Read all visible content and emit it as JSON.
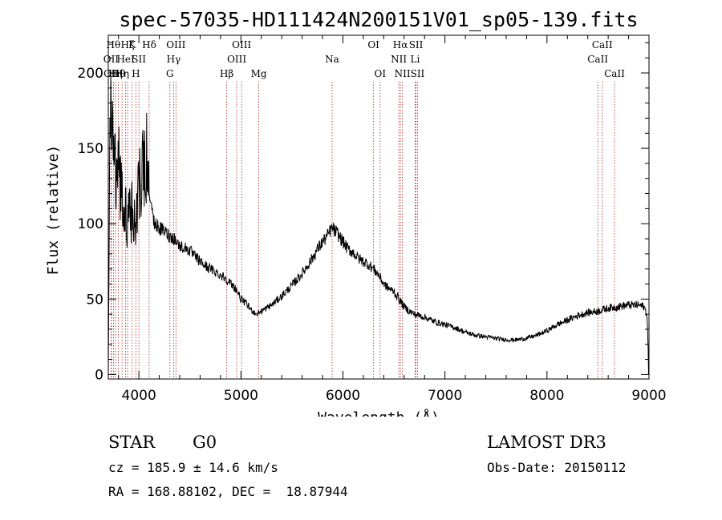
{
  "chart_data": {
    "type": "line",
    "title": "spec-57035-HD111424N200151V01_sp05-139.fits",
    "xlabel": "Wavelength (Å)",
    "ylabel": "Flux (relative)",
    "xlim": [
      3700,
      9000
    ],
    "ylim": [
      -3,
      225
    ],
    "x_ticks": [
      4000,
      5000,
      6000,
      7000,
      8000,
      9000
    ],
    "y_ticks": [
      0,
      50,
      100,
      150,
      200
    ],
    "grid": false,
    "series": [
      {
        "name": "flux",
        "color": "#000000",
        "x": [
          3700,
          3720,
          3740,
          3760,
          3780,
          3800,
          3830,
          3860,
          3900,
          3940,
          3980,
          4020,
          4060,
          4080,
          4100,
          4150,
          4200,
          4250,
          4300,
          4350,
          4400,
          4450,
          4500,
          4550,
          4600,
          4650,
          4700,
          4750,
          4800,
          4850,
          4900,
          4950,
          5000,
          5050,
          5100,
          5150,
          5200,
          5300,
          5400,
          5500,
          5600,
          5700,
          5750,
          5800,
          5850,
          5880,
          5900,
          5920,
          5950,
          6000,
          6050,
          6100,
          6150,
          6200,
          6250,
          6300,
          6350,
          6400,
          6450,
          6500,
          6550,
          6600,
          6650,
          6700,
          6750,
          6800,
          6900,
          7000,
          7100,
          7200,
          7300,
          7400,
          7500,
          7600,
          7700,
          7800,
          7900,
          8000,
          8100,
          8200,
          8300,
          8400,
          8500,
          8600,
          8700,
          8800,
          8900,
          8950,
          8980,
          9000
        ],
        "y": [
          0,
          190,
          150,
          140,
          120,
          145,
          115,
          110,
          100,
          108,
          110,
          130,
          140,
          145,
          120,
          100,
          97,
          95,
          92,
          90,
          85,
          84,
          82,
          78,
          75,
          72,
          70,
          68,
          66,
          64,
          60,
          57,
          50,
          47,
          43,
          40,
          42,
          46,
          52,
          59,
          67,
          77,
          83,
          88,
          92,
          96,
          97,
          95,
          93,
          88,
          83,
          81,
          77,
          75,
          73,
          70,
          66,
          60,
          57,
          55,
          50,
          45,
          42,
          40,
          39,
          38,
          35,
          33,
          31,
          28,
          26,
          25,
          24,
          23,
          23,
          24,
          26,
          29,
          33,
          36,
          39,
          41,
          42,
          44,
          45,
          46,
          46,
          45,
          40,
          0
        ]
      }
    ],
    "lines": [
      {
        "wl": 3727,
        "label": "OII",
        "row": 1
      },
      {
        "wl": 3730,
        "label": "OII",
        "row": 2
      },
      {
        "wl": 3750,
        "label": "Hθ",
        "row": 0
      },
      {
        "wl": 3770,
        "label": "Hη",
        "row": 2
      },
      {
        "wl": 3798,
        "label": "Hθ",
        "row": 2
      },
      {
        "wl": 3835,
        "label": "Hη",
        "row": 2
      },
      {
        "wl": 3870,
        "label": "HeI",
        "row": 1
      },
      {
        "wl": 3889,
        "label": "Hζ",
        "row": 0
      },
      {
        "wl": 3934,
        "label": "K",
        "row": 0
      },
      {
        "wl": 3970,
        "label": "H",
        "row": 2
      },
      {
        "wl": 4000,
        "label": "SII",
        "row": 1
      },
      {
        "wl": 4101,
        "label": "Hδ",
        "row": 0
      },
      {
        "wl": 4304,
        "label": "G",
        "row": 2
      },
      {
        "wl": 4340,
        "label": "Hγ",
        "row": 1
      },
      {
        "wl": 4363,
        "label": "OIII",
        "row": 0
      },
      {
        "wl": 4861,
        "label": "Hβ",
        "row": 2
      },
      {
        "wl": 4959,
        "label": "OIII",
        "row": 1
      },
      {
        "wl": 5007,
        "label": "OIII",
        "row": 0
      },
      {
        "wl": 5175,
        "label": "Mg",
        "row": 2
      },
      {
        "wl": 5894,
        "label": "Na",
        "row": 1
      },
      {
        "wl": 6300,
        "label": "OI",
        "row": 0
      },
      {
        "wl": 6364,
        "label": "OI",
        "row": 2
      },
      {
        "wl": 6548,
        "label": "NII",
        "row": 1
      },
      {
        "wl": 6563,
        "label": "Hα",
        "row": 0
      },
      {
        "wl": 6583,
        "label": "NII",
        "row": 2
      },
      {
        "wl": 6707,
        "label": "Li",
        "row": 1
      },
      {
        "wl": 6716,
        "label": "SII",
        "row": 0
      },
      {
        "wl": 6731,
        "label": "SII",
        "row": 2
      },
      {
        "wl": 8498,
        "label": "CaII",
        "row": 1
      },
      {
        "wl": 8542,
        "label": "CaII",
        "row": 0
      },
      {
        "wl": 8662,
        "label": "CaII",
        "row": 2
      }
    ],
    "line_color": "#b22222"
  },
  "info": {
    "class_label": "STAR",
    "subclass": "G0",
    "cz": "cz = 185.9 ± 14.6 km/s",
    "coords": "RA = 168.88102, DEC =  18.87944",
    "survey": "LAMOST DR3",
    "obs_date": "Obs-Date: 20150112"
  }
}
